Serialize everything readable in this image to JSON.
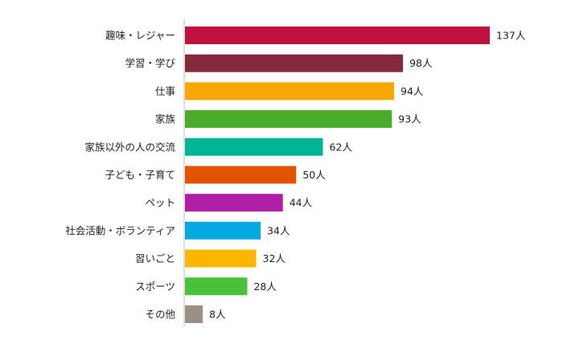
{
  "chart_data": {
    "type": "bar",
    "orientation": "horizontal",
    "title": "",
    "xlabel": "",
    "ylabel": "",
    "unit_suffix": "人",
    "xlim": [
      0,
      137
    ],
    "grid": false,
    "legend": "none",
    "categories": [
      "趣味・レジャー",
      "学習・学び",
      "仕事",
      "家族",
      "家族以外の人の交流",
      "子ども・子育て",
      "ペット",
      "社会活動・ボランティア",
      "習いごと",
      "スポーツ",
      "その他"
    ],
    "values": [
      137,
      98,
      94,
      93,
      62,
      50,
      44,
      34,
      32,
      28,
      8
    ],
    "value_labels": [
      "137人",
      "98人",
      "94人",
      "93人",
      "62人",
      "50人",
      "44人",
      "34人",
      "32人",
      "28人",
      "8人"
    ],
    "colors": [
      "#c0103f",
      "#852a3c",
      "#f6a800",
      "#4aaa2a",
      "#00b596",
      "#e35200",
      "#ae1fa6",
      "#00a9e0",
      "#fbb600",
      "#48c23a",
      "#9c8f84"
    ]
  }
}
